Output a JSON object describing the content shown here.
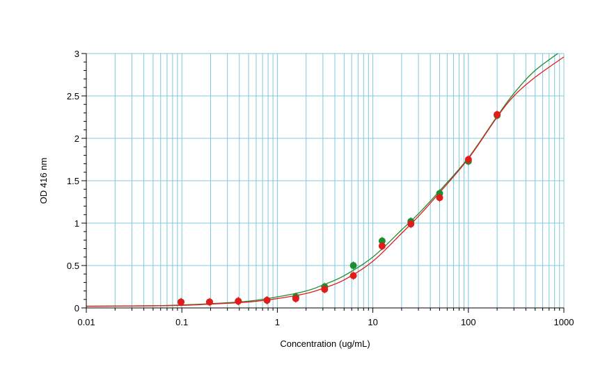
{
  "chart_data": {
    "type": "scatter",
    "title": "",
    "xlabel": "Concentration (ug/mL)",
    "ylabel": "OD 416 nm",
    "xscale": "log",
    "xlim": [
      0.01,
      1000
    ],
    "ylim": [
      0,
      3
    ],
    "grid": true,
    "legend": "none",
    "x_ticks": [
      "0.01",
      "0.1",
      "1",
      "10",
      "100",
      "1000"
    ],
    "y_ticks": [
      "0",
      "0.5",
      "1",
      "1.5",
      "2",
      "2.5",
      "3"
    ],
    "series": [
      {
        "color": "#1e8c2f",
        "marker": "circle",
        "points": [
          {
            "x": 0.098,
            "y": 0.07
          },
          {
            "x": 0.195,
            "y": 0.07
          },
          {
            "x": 0.39,
            "y": 0.08
          },
          {
            "x": 0.78,
            "y": 0.09
          },
          {
            "x": 1.56,
            "y": 0.13
          },
          {
            "x": 3.125,
            "y": 0.25
          },
          {
            "x": 6.25,
            "y": 0.5
          },
          {
            "x": 12.5,
            "y": 0.79
          },
          {
            "x": 25,
            "y": 1.02
          },
          {
            "x": 50,
            "y": 1.35
          },
          {
            "x": 100,
            "y": 1.73
          },
          {
            "x": 200,
            "y": 2.27
          }
        ],
        "fit_curve": [
          {
            "x": 0.01,
            "y": 0.02
          },
          {
            "x": 0.05,
            "y": 0.025
          },
          {
            "x": 0.1,
            "y": 0.035
          },
          {
            "x": 0.2,
            "y": 0.05
          },
          {
            "x": 0.5,
            "y": 0.08
          },
          {
            "x": 1,
            "y": 0.13
          },
          {
            "x": 2,
            "y": 0.2
          },
          {
            "x": 3,
            "y": 0.27
          },
          {
            "x": 5,
            "y": 0.38
          },
          {
            "x": 10,
            "y": 0.6
          },
          {
            "x": 20,
            "y": 0.92
          },
          {
            "x": 30,
            "y": 1.11
          },
          {
            "x": 50,
            "y": 1.38
          },
          {
            "x": 100,
            "y": 1.77
          },
          {
            "x": 200,
            "y": 2.26
          },
          {
            "x": 300,
            "y": 2.53
          },
          {
            "x": 500,
            "y": 2.8
          },
          {
            "x": 1000,
            "y": 3.05
          }
        ]
      },
      {
        "color": "#e21b1b",
        "marker": "circle",
        "points": [
          {
            "x": 0.098,
            "y": 0.07
          },
          {
            "x": 0.195,
            "y": 0.07
          },
          {
            "x": 0.39,
            "y": 0.08
          },
          {
            "x": 0.78,
            "y": 0.09
          },
          {
            "x": 1.56,
            "y": 0.11
          },
          {
            "x": 3.125,
            "y": 0.22
          },
          {
            "x": 6.25,
            "y": 0.38
          },
          {
            "x": 12.5,
            "y": 0.73
          },
          {
            "x": 25,
            "y": 0.99
          },
          {
            "x": 50,
            "y": 1.3
          },
          {
            "x": 100,
            "y": 1.75
          },
          {
            "x": 200,
            "y": 2.28
          }
        ],
        "fit_curve": [
          {
            "x": 0.01,
            "y": 0.02
          },
          {
            "x": 0.05,
            "y": 0.025
          },
          {
            "x": 0.1,
            "y": 0.03
          },
          {
            "x": 0.2,
            "y": 0.045
          },
          {
            "x": 0.5,
            "y": 0.07
          },
          {
            "x": 1,
            "y": 0.11
          },
          {
            "x": 2,
            "y": 0.17
          },
          {
            "x": 3,
            "y": 0.23
          },
          {
            "x": 5,
            "y": 0.33
          },
          {
            "x": 10,
            "y": 0.55
          },
          {
            "x": 20,
            "y": 0.88
          },
          {
            "x": 30,
            "y": 1.08
          },
          {
            "x": 50,
            "y": 1.36
          },
          {
            "x": 100,
            "y": 1.76
          },
          {
            "x": 200,
            "y": 2.25
          },
          {
            "x": 300,
            "y": 2.5
          },
          {
            "x": 500,
            "y": 2.72
          },
          {
            "x": 1000,
            "y": 2.96
          }
        ]
      }
    ]
  }
}
